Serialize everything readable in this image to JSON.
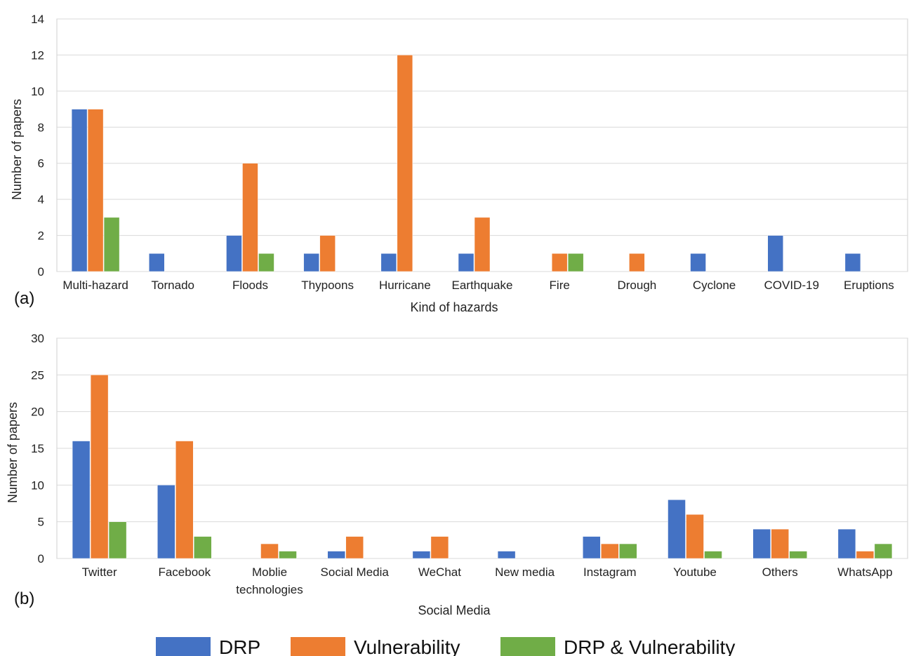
{
  "colors": {
    "DRP": "#4472c4",
    "Vulnerability": "#ed7d31",
    "DRP & Vulnerability": "#70ad47"
  },
  "legend": {
    "items": [
      "DRP",
      "Vulnerability",
      "DRP & Vulnerability"
    ]
  },
  "chart_data": [
    {
      "type": "bar",
      "panel_label": "(a)",
      "xlabel": "Kind of hazards",
      "ylabel": "Number of papers",
      "ylim": [
        0,
        14
      ],
      "yticks": [
        0,
        2,
        4,
        6,
        8,
        10,
        12,
        14
      ],
      "grid": true,
      "categories": [
        "Multi-hazard",
        "Tornado",
        "Floods",
        "Thypoons",
        "Hurricane",
        "Earthquake",
        "Fire",
        "Drough",
        "Cyclone",
        "COVID-19",
        "Eruptions"
      ],
      "series": [
        {
          "name": "DRP",
          "values": [
            9,
            1,
            2,
            1,
            1,
            1,
            0,
            0,
            1,
            2,
            1
          ]
        },
        {
          "name": "Vulnerability",
          "values": [
            9,
            0,
            6,
            2,
            12,
            3,
            1,
            1,
            0,
            0,
            0
          ]
        },
        {
          "name": "DRP & Vulnerability",
          "values": [
            3,
            0,
            1,
            0,
            0,
            0,
            1,
            0,
            0,
            0,
            0
          ]
        }
      ]
    },
    {
      "type": "bar",
      "panel_label": "(b)",
      "xlabel": "Social Media",
      "ylabel": "Number of papers",
      "ylim": [
        0,
        30
      ],
      "yticks": [
        0,
        5,
        10,
        15,
        20,
        25,
        30
      ],
      "grid": true,
      "categories": [
        "Twitter",
        "Facebook",
        "Moblie technologies",
        "Social Media",
        "WeChat",
        "New media",
        "Instagram",
        "Youtube",
        "Others",
        "WhatsApp"
      ],
      "series": [
        {
          "name": "DRP",
          "values": [
            16,
            10,
            0,
            1,
            1,
            1,
            3,
            8,
            4,
            4
          ]
        },
        {
          "name": "Vulnerability",
          "values": [
            25,
            16,
            2,
            3,
            3,
            0,
            2,
            6,
            4,
            1
          ]
        },
        {
          "name": "DRP & Vulnerability",
          "values": [
            5,
            3,
            1,
            0,
            0,
            0,
            2,
            1,
            1,
            2
          ]
        }
      ]
    }
  ]
}
